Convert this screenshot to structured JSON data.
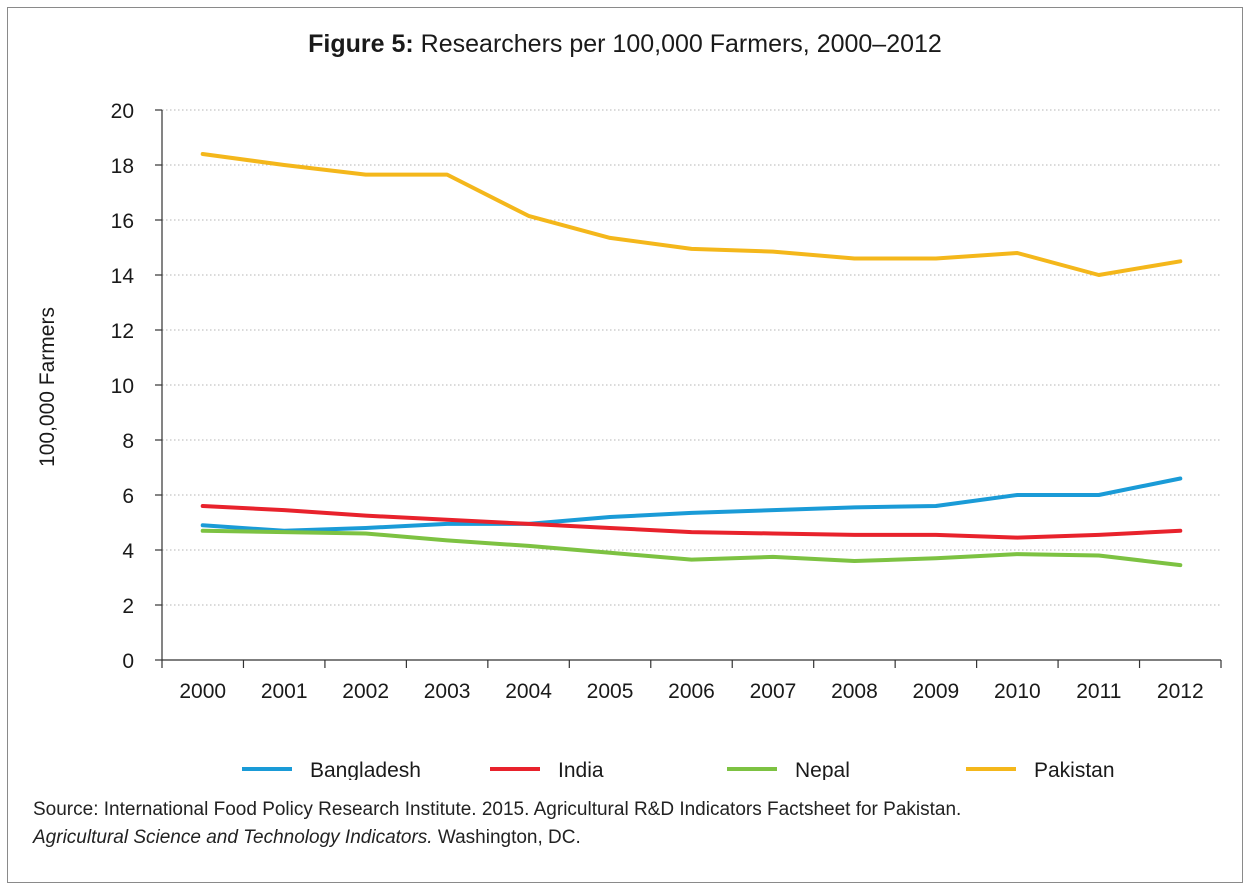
{
  "figure": {
    "title_prefix": "Figure 5:",
    "title_text": " Researchers per 100,000 Farmers, 2000–2012"
  },
  "source": {
    "line1": "Source: International Food Policy Research Institute. 2015. Agricultural R&D Indicators Factsheet for Pakistan.",
    "line2_italic": "Agricultural Science and Technology Indicators.",
    "line2_rest": " Washington, DC."
  },
  "chart_data": {
    "type": "line",
    "title": "Figure 5: Researchers per 100,000 Farmers, 2000–2012",
    "xlabel": "",
    "ylabel": "100,000 Farmers",
    "ylim": [
      0,
      20
    ],
    "yticks": [
      0,
      2,
      4,
      6,
      8,
      10,
      12,
      14,
      16,
      18,
      20
    ],
    "grid": "horizontal dotted",
    "legend_position": "bottom",
    "categories": [
      "2000",
      "2001",
      "2002",
      "2003",
      "2004",
      "2005",
      "2006",
      "2007",
      "2008",
      "2009",
      "2010",
      "2011",
      "2012"
    ],
    "series": [
      {
        "name": "Bangladesh",
        "color": "#1a9bd7",
        "values": [
          4.9,
          4.7,
          4.8,
          4.95,
          4.95,
          5.2,
          5.35,
          5.45,
          5.55,
          5.6,
          6.0,
          6.0,
          6.6
        ]
      },
      {
        "name": "India",
        "color": "#e8222c",
        "values": [
          5.6,
          5.45,
          5.25,
          5.1,
          4.95,
          4.8,
          4.65,
          4.6,
          4.55,
          4.55,
          4.45,
          4.55,
          4.7
        ]
      },
      {
        "name": "Nepal",
        "color": "#7dc242",
        "values": [
          4.7,
          4.65,
          4.6,
          4.35,
          4.15,
          3.9,
          3.65,
          3.75,
          3.6,
          3.7,
          3.85,
          3.8,
          3.45
        ]
      },
      {
        "name": "Pakistan",
        "color": "#f4b71b",
        "values": [
          18.4,
          18.0,
          17.65,
          17.65,
          16.15,
          15.35,
          14.95,
          14.85,
          14.6,
          14.6,
          14.8,
          14.0,
          14.5
        ]
      }
    ]
  }
}
